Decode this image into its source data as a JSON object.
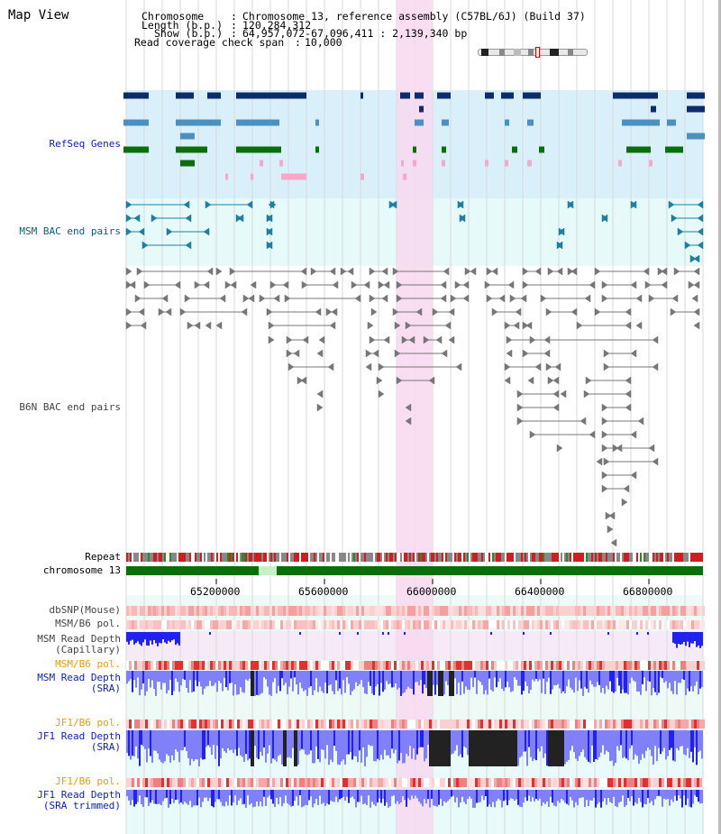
{
  "view_title": "Map View",
  "header": {
    "chromosome_label": "Chromosome",
    "chromosome_value": "Chromosome 13, reference assembly (C57BL/6J) (Build 37)",
    "length_label": "Length (b.p.)",
    "length_value": "120,284,312",
    "show_label": "Show (b.p.)",
    "show_value": "64,957,072-67,096,411 : 2,139,340 bp",
    "coverage_label": "Read coverage check span",
    "coverage_value": "10,000",
    "sep": ":"
  },
  "tracks": {
    "refseq": "RefSeq Genes",
    "msm_bac": "MSM BAC end pairs",
    "b6n_bac": "B6N BAC end pairs",
    "repeat": "Repeat",
    "chromosome": "chromosome 13",
    "dbsnp": "dbSNP(Mouse)",
    "msm_b6_pol_1": "MSM/B6 pol.",
    "msm_depth_cap_1": "MSM Read Depth",
    "msm_depth_cap_2": "(Capillary)",
    "msm_b6_pol_2": "MSM/B6 pol.",
    "msm_depth_sra_1": "MSM Read Depth",
    "msm_depth_sra_2": "(SRA)",
    "jf1_b6_pol_1": "JF1/B6 pol.",
    "jf1_depth_sra_1": "JF1 Read Depth",
    "jf1_depth_sra_2": "(SRA)",
    "jf1_b6_pol_2": "JF1/B6 pol.",
    "jf1_depth_trim_1": "JF1 Read Depth",
    "jf1_depth_trim_2": "(SRA trimmed)"
  },
  "axis": {
    "ticks": [
      "65200000",
      "65600000",
      "66000000",
      "66400000",
      "66800000"
    ]
  },
  "colors": {
    "refseq_bg": "#d9f0fa",
    "msm_bac_bg": "#e6fafa",
    "highlight": "#f8d8f0",
    "gene_navy": "#0b2d6b",
    "gene_blue": "#4a90c0",
    "gene_green": "#0a6e0a",
    "gene_pink": "#f7a8c8",
    "bac_teal": "#1f7fa0",
    "bac_gray": "#777777",
    "chrom_green": "#0a6e0a",
    "depth_blue": "#2222ee",
    "depth_light": "#8080f8",
    "depth_black": "#222222"
  }
}
